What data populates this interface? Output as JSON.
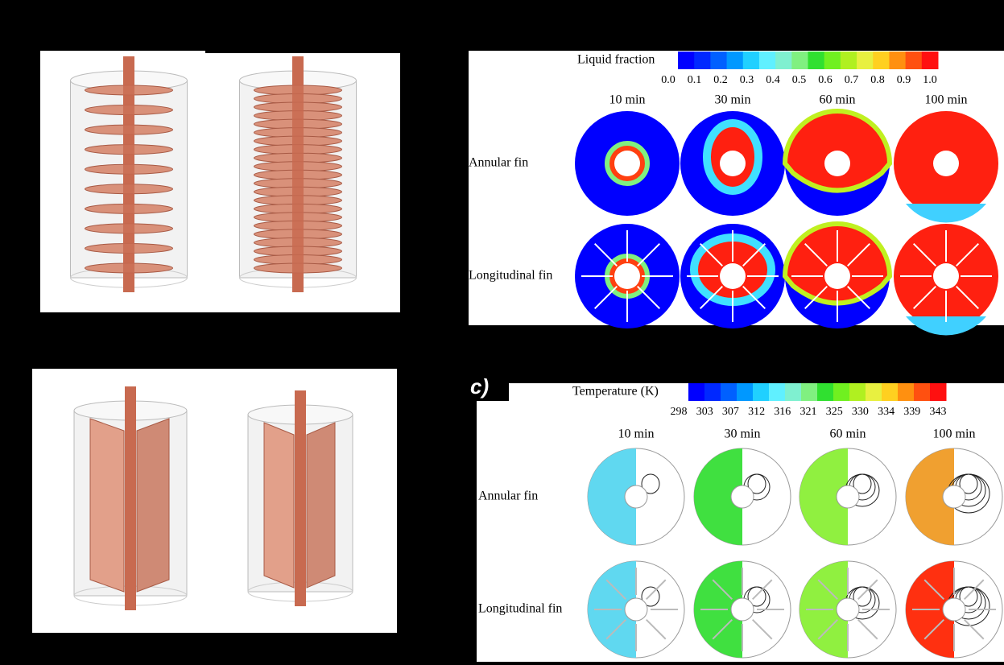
{
  "panel_c_label": "c)",
  "liquid_fraction": {
    "title": "Liquid fraction",
    "ticks": [
      "0.0",
      "0.1",
      "0.2",
      "0.3",
      "0.4",
      "0.5",
      "0.6",
      "0.7",
      "0.8",
      "0.9",
      "1.0"
    ],
    "times": [
      "10 min",
      "30 min",
      "60 min",
      "100 min"
    ],
    "rows": [
      "Annular fin",
      "Longitudinal fin"
    ]
  },
  "temperature": {
    "title": "Temperature (K)",
    "ticks": [
      "298",
      "303",
      "307",
      "312",
      "316",
      "321",
      "325",
      "330",
      "334",
      "339",
      "343"
    ],
    "times": [
      "10 min",
      "30 min",
      "60 min",
      "100 min"
    ],
    "rows": [
      "Annular fin",
      "Longitudinal fin"
    ]
  }
}
